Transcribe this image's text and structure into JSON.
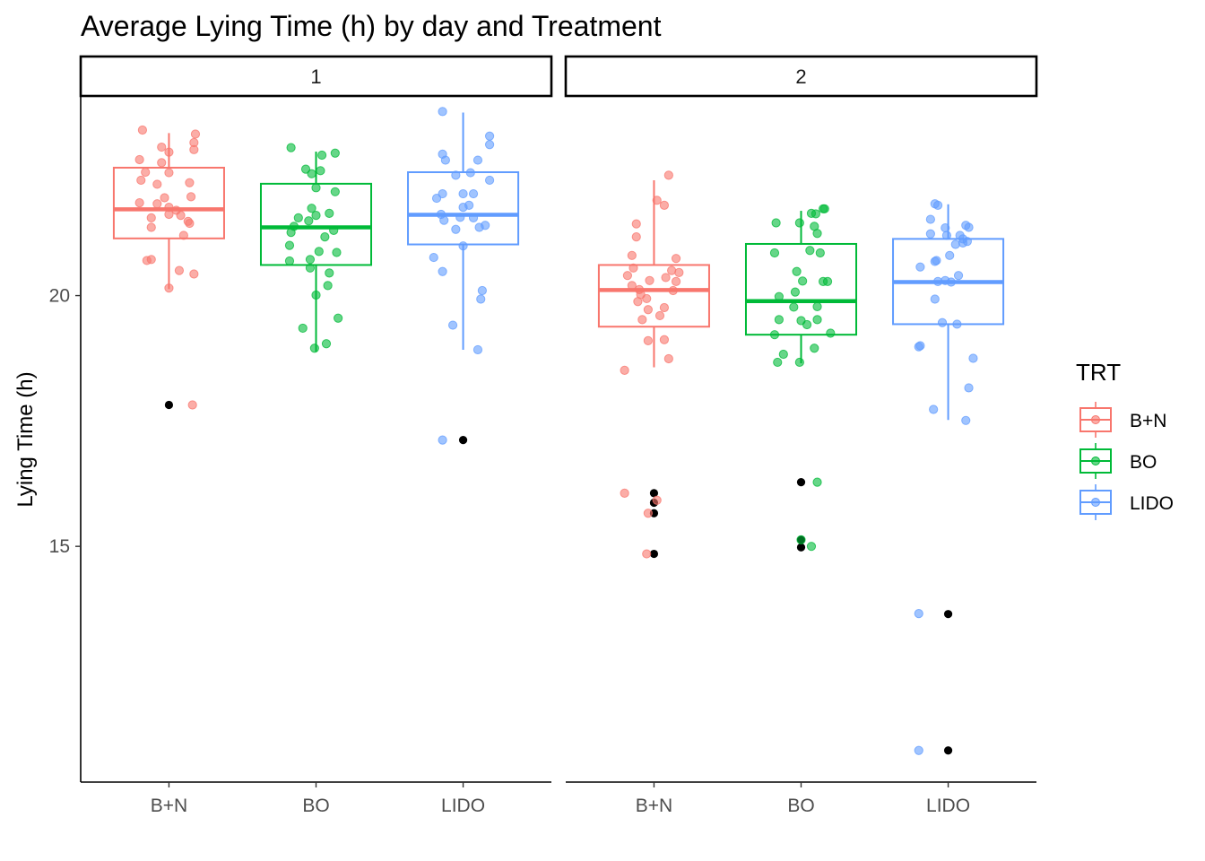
{
  "chart_data": {
    "type": "box+jitter",
    "title": "Average Lying Time (h) by day and Treatment",
    "xlabel": "",
    "ylabel": "Lying Time (h)",
    "facet_labels": [
      "1",
      "2"
    ],
    "categories": [
      "B+N",
      "BO",
      "LIDO"
    ],
    "y_ticks": [
      15,
      20
    ],
    "ylim": [
      10.3,
      23.98
    ],
    "legend": {
      "title": "TRT",
      "position": "right",
      "entries": [
        {
          "label": "B+N",
          "color": "#F8766D"
        },
        {
          "label": "BO",
          "color": "#00BA38"
        },
        {
          "label": "LIDO",
          "color": "#619CFF"
        }
      ]
    },
    "outlier_color": "#000000",
    "facets": [
      {
        "day": "1",
        "groups": [
          {
            "trt": "B+N",
            "box": {
              "lower": 21.14,
              "q1": 21.14,
              "median": 21.72,
              "q3": 22.55,
              "upper": 23.24,
              "whisker_low": 20.13,
              "whisker_high": 23.24
            },
            "outliers": [
              17.82
            ],
            "points": [
              {
                "j": -0.18,
                "y": 23.3
              },
              {
                "j": 0.18,
                "y": 23.22
              },
              {
                "j": -0.05,
                "y": 22.96
              },
              {
                "j": 0.17,
                "y": 23.05
              },
              {
                "j": -0.2,
                "y": 22.71
              },
              {
                "j": 0.0,
                "y": 22.86
              },
              {
                "j": 0.17,
                "y": 22.91
              },
              {
                "j": -0.05,
                "y": 22.65
              },
              {
                "j": -0.16,
                "y": 22.46
              },
              {
                "j": 0.0,
                "y": 22.45
              },
              {
                "j": -0.19,
                "y": 22.3
              },
              {
                "j": -0.08,
                "y": 22.22
              },
              {
                "j": 0.14,
                "y": 22.25
              },
              {
                "j": -0.03,
                "y": 21.95
              },
              {
                "j": 0.15,
                "y": 21.97
              },
              {
                "j": -0.2,
                "y": 21.85
              },
              {
                "j": -0.08,
                "y": 21.83
              },
              {
                "j": 0.0,
                "y": 21.76
              },
              {
                "j": 0.05,
                "y": 21.7
              },
              {
                "j": -0.12,
                "y": 21.55
              },
              {
                "j": 0.0,
                "y": 21.62
              },
              {
                "j": 0.13,
                "y": 21.48
              },
              {
                "j": 0.14,
                "y": 21.44
              },
              {
                "j": -0.12,
                "y": 21.36
              },
              {
                "j": 0.08,
                "y": 21.6
              },
              {
                "j": 0.1,
                "y": 21.2
              },
              {
                "j": -0.15,
                "y": 20.7
              },
              {
                "j": -0.12,
                "y": 20.72
              },
              {
                "j": 0.07,
                "y": 20.5
              },
              {
                "j": 0.17,
                "y": 20.43
              },
              {
                "j": 0.0,
                "y": 20.15
              },
              {
                "j": 0.16,
                "y": 17.82
              }
            ]
          },
          {
            "trt": "BO",
            "box": {
              "q1": 20.61,
              "median": 21.36,
              "q3": 22.23,
              "whisker_low": 18.88,
              "whisker_high": 22.87
            },
            "outliers": [],
            "points": [
              {
                "j": -0.17,
                "y": 22.95
              },
              {
                "j": 0.13,
                "y": 22.84
              },
              {
                "j": -0.07,
                "y": 22.52
              },
              {
                "j": 0.03,
                "y": 22.49
              },
              {
                "j": -0.03,
                "y": 22.43
              },
              {
                "j": 0.04,
                "y": 22.8
              },
              {
                "j": 0.0,
                "y": 22.15
              },
              {
                "j": 0.13,
                "y": 22.07
              },
              {
                "j": -0.03,
                "y": 21.74
              },
              {
                "j": 0.09,
                "y": 21.64
              },
              {
                "j": -0.12,
                "y": 21.55
              },
              {
                "j": 0.0,
                "y": 21.6
              },
              {
                "j": -0.05,
                "y": 21.49
              },
              {
                "j": 0.12,
                "y": 21.3
              },
              {
                "j": -0.15,
                "y": 21.38
              },
              {
                "j": -0.17,
                "y": 21.26
              },
              {
                "j": 0.06,
                "y": 21.17
              },
              {
                "j": -0.18,
                "y": 21.0
              },
              {
                "j": 0.02,
                "y": 20.88
              },
              {
                "j": 0.14,
                "y": 20.86
              },
              {
                "j": -0.18,
                "y": 20.69
              },
              {
                "j": -0.04,
                "y": 20.72
              },
              {
                "j": -0.04,
                "y": 20.55
              },
              {
                "j": 0.09,
                "y": 20.45
              },
              {
                "j": 0.08,
                "y": 20.2
              },
              {
                "j": 0.0,
                "y": 20.01
              },
              {
                "j": 0.15,
                "y": 19.55
              },
              {
                "j": -0.09,
                "y": 19.35
              },
              {
                "j": -0.01,
                "y": 18.95
              },
              {
                "j": 0.07,
                "y": 19.04
              }
            ]
          },
          {
            "trt": "LIDO",
            "box": {
              "q1": 21.02,
              "median": 21.61,
              "q3": 22.46,
              "whisker_low": 18.92,
              "whisker_high": 23.65
            },
            "outliers": [
              17.12
            ],
            "points": [
              {
                "j": -0.14,
                "y": 23.67
              },
              {
                "j": 0.18,
                "y": 23.18
              },
              {
                "j": 0.18,
                "y": 23.01
              },
              {
                "j": -0.14,
                "y": 22.82
              },
              {
                "j": -0.12,
                "y": 22.7
              },
              {
                "j": 0.1,
                "y": 22.7
              },
              {
                "j": 0.05,
                "y": 22.45
              },
              {
                "j": -0.05,
                "y": 22.4
              },
              {
                "j": 0.18,
                "y": 22.3
              },
              {
                "j": -0.14,
                "y": 22.03
              },
              {
                "j": 0.0,
                "y": 22.03
              },
              {
                "j": 0.07,
                "y": 22.03
              },
              {
                "j": -0.18,
                "y": 21.94
              },
              {
                "j": 0.04,
                "y": 21.8
              },
              {
                "j": 0.0,
                "y": 21.76
              },
              {
                "j": 0.07,
                "y": 21.55
              },
              {
                "j": -0.15,
                "y": 21.62
              },
              {
                "j": -0.02,
                "y": 21.56
              },
              {
                "j": -0.13,
                "y": 21.5
              },
              {
                "j": 0.15,
                "y": 21.4
              },
              {
                "j": 0.11,
                "y": 21.36
              },
              {
                "j": -0.05,
                "y": 21.32
              },
              {
                "j": 0.0,
                "y": 20.99
              },
              {
                "j": -0.2,
                "y": 20.76
              },
              {
                "j": -0.14,
                "y": 20.48
              },
              {
                "j": 0.13,
                "y": 20.1
              },
              {
                "j": 0.12,
                "y": 19.93
              },
              {
                "j": -0.07,
                "y": 19.41
              },
              {
                "j": 0.1,
                "y": 18.92
              },
              {
                "j": -0.14,
                "y": 17.12
              }
            ]
          }
        ]
      },
      {
        "day": "2",
        "groups": [
          {
            "trt": "B+N",
            "box": {
              "q1": 19.38,
              "median": 20.11,
              "q3": 20.61,
              "whisker_low": 18.57,
              "whisker_high": 22.3
            },
            "outliers": [
              16.06,
              15.87,
              15.66,
              14.85
            ],
            "points": [
              {
                "j": 0.1,
                "y": 22.4
              },
              {
                "j": 0.02,
                "y": 21.9
              },
              {
                "j": 0.07,
                "y": 21.8
              },
              {
                "j": -0.12,
                "y": 21.43
              },
              {
                "j": -0.12,
                "y": 21.17
              },
              {
                "j": -0.15,
                "y": 20.8
              },
              {
                "j": 0.15,
                "y": 20.74
              },
              {
                "j": -0.14,
                "y": 20.55
              },
              {
                "j": 0.12,
                "y": 20.5
              },
              {
                "j": 0.17,
                "y": 20.46
              },
              {
                "j": -0.18,
                "y": 20.4
              },
              {
                "j": 0.08,
                "y": 20.36
              },
              {
                "j": -0.03,
                "y": 20.3
              },
              {
                "j": 0.15,
                "y": 20.28
              },
              {
                "j": -0.15,
                "y": 20.2
              },
              {
                "j": 0.13,
                "y": 20.1
              },
              {
                "j": -0.1,
                "y": 20.12
              },
              {
                "j": -0.09,
                "y": 20.02
              },
              {
                "j": -0.05,
                "y": 19.94
              },
              {
                "j": -0.11,
                "y": 19.88
              },
              {
                "j": 0.07,
                "y": 19.76
              },
              {
                "j": -0.04,
                "y": 19.72
              },
              {
                "j": 0.04,
                "y": 19.6
              },
              {
                "j": -0.08,
                "y": 19.52
              },
              {
                "j": -0.04,
                "y": 19.1
              },
              {
                "j": 0.07,
                "y": 19.12
              },
              {
                "j": 0.1,
                "y": 18.74
              },
              {
                "j": -0.2,
                "y": 18.51
              },
              {
                "j": -0.2,
                "y": 16.06
              },
              {
                "j": 0.02,
                "y": 15.92
              },
              {
                "j": -0.04,
                "y": 15.66
              },
              {
                "j": -0.05,
                "y": 14.85
              }
            ]
          },
          {
            "trt": "BO",
            "box": {
              "q1": 19.22,
              "median": 19.89,
              "q3": 21.03,
              "whisker_low": 18.65,
              "whisker_high": 21.69
            },
            "outliers": [
              16.28,
              15.13,
              14.98
            ],
            "points": [
              {
                "j": 0.15,
                "y": 21.73
              },
              {
                "j": 0.16,
                "y": 21.73
              },
              {
                "j": 0.07,
                "y": 21.64
              },
              {
                "j": 0.1,
                "y": 21.63
              },
              {
                "j": -0.17,
                "y": 21.45
              },
              {
                "j": -0.01,
                "y": 21.45
              },
              {
                "j": 0.09,
                "y": 21.38
              },
              {
                "j": 0.11,
                "y": 21.24
              },
              {
                "j": 0.06,
                "y": 20.9
              },
              {
                "j": 0.13,
                "y": 20.85
              },
              {
                "j": -0.18,
                "y": 20.85
              },
              {
                "j": -0.03,
                "y": 20.48
              },
              {
                "j": 0.01,
                "y": 20.29
              },
              {
                "j": 0.15,
                "y": 20.28
              },
              {
                "j": 0.18,
                "y": 20.28
              },
              {
                "j": -0.04,
                "y": 20.07
              },
              {
                "j": -0.15,
                "y": 19.98
              },
              {
                "j": 0.11,
                "y": 19.78
              },
              {
                "j": -0.05,
                "y": 19.77
              },
              {
                "j": 0.0,
                "y": 19.5
              },
              {
                "j": -0.15,
                "y": 19.52
              },
              {
                "j": 0.11,
                "y": 19.52
              },
              {
                "j": 0.04,
                "y": 19.42
              },
              {
                "j": -0.18,
                "y": 19.22
              },
              {
                "j": 0.2,
                "y": 19.25
              },
              {
                "j": 0.09,
                "y": 18.95
              },
              {
                "j": -0.12,
                "y": 18.83
              },
              {
                "j": -0.16,
                "y": 18.67
              },
              {
                "j": -0.01,
                "y": 18.67
              },
              {
                "j": 0.11,
                "y": 16.28
              },
              {
                "j": 0.0,
                "y": 15.13
              },
              {
                "j": 0.07,
                "y": 15.0
              }
            ]
          },
          {
            "trt": "LIDO",
            "box": {
              "q1": 19.43,
              "median": 20.27,
              "q3": 21.13,
              "whisker_low": 17.52,
              "whisker_high": 21.82
            },
            "outliers": [
              13.65,
              10.93
            ],
            "points": [
              {
                "j": -0.09,
                "y": 21.83
              },
              {
                "j": -0.07,
                "y": 21.8
              },
              {
                "j": -0.12,
                "y": 21.52
              },
              {
                "j": 0.12,
                "y": 21.4
              },
              {
                "j": 0.14,
                "y": 21.36
              },
              {
                "j": -0.02,
                "y": 21.35
              },
              {
                "j": -0.01,
                "y": 21.2
              },
              {
                "j": -0.12,
                "y": 21.23
              },
              {
                "j": 0.08,
                "y": 21.2
              },
              {
                "j": 0.1,
                "y": 21.13
              },
              {
                "j": 0.1,
                "y": 21.05
              },
              {
                "j": 0.13,
                "y": 21.08
              },
              {
                "j": 0.05,
                "y": 21.02
              },
              {
                "j": 0.01,
                "y": 20.8
              },
              {
                "j": -0.08,
                "y": 20.7
              },
              {
                "j": -0.09,
                "y": 20.68
              },
              {
                "j": -0.19,
                "y": 20.57
              },
              {
                "j": 0.07,
                "y": 20.4
              },
              {
                "j": -0.07,
                "y": 20.28
              },
              {
                "j": -0.02,
                "y": 20.3
              },
              {
                "j": 0.02,
                "y": 20.27
              },
              {
                "j": -0.09,
                "y": 19.93
              },
              {
                "j": -0.04,
                "y": 19.46
              },
              {
                "j": 0.06,
                "y": 19.43
              },
              {
                "j": -0.19,
                "y": 19.0
              },
              {
                "j": -0.2,
                "y": 18.98
              },
              {
                "j": 0.17,
                "y": 18.75
              },
              {
                "j": 0.14,
                "y": 18.16
              },
              {
                "j": -0.1,
                "y": 17.73
              },
              {
                "j": 0.12,
                "y": 17.51
              },
              {
                "j": -0.2,
                "y": 13.66
              },
              {
                "j": -0.2,
                "y": 10.93
              }
            ]
          }
        ]
      }
    ]
  }
}
